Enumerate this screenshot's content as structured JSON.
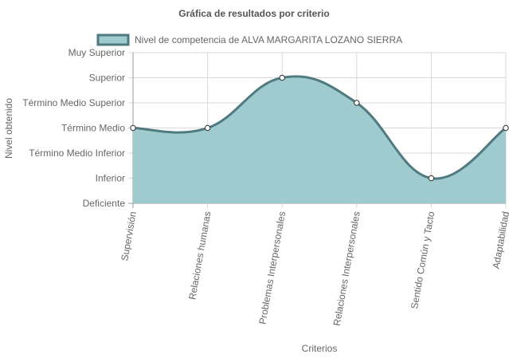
{
  "chart_data": {
    "type": "area",
    "title": "Gráfica de resultados por criterio",
    "xlabel": "Criterios",
    "ylabel": "Nivel obtenido",
    "y_levels": [
      "Deficiente",
      "Inferior",
      "Término Medio Inferior",
      "Término Medio",
      "Término Medio Superior",
      "Superior",
      "Muy Superior"
    ],
    "ylim": [
      0,
      6
    ],
    "categories": [
      "Supervisión",
      "Relaciones humanas",
      "Problemas Interpersonales",
      "Relaciones Interpersonales",
      "Sentido Común y Tacto",
      "Adaptabilidad"
    ],
    "series": [
      {
        "name": "Nivel de competencia de ALVA MARGARITA LOZANO SIERRA",
        "values": [
          3,
          3,
          5,
          4,
          1,
          3
        ]
      }
    ],
    "grid": true,
    "legend": "top",
    "colors": {
      "line": "#4f7a80",
      "fill": "#9fcbcf",
      "point_fill": "#ffffff",
      "grid": "#d9d9d9",
      "zero_line": "#999999",
      "title": "#555555",
      "text": "#666666"
    }
  }
}
